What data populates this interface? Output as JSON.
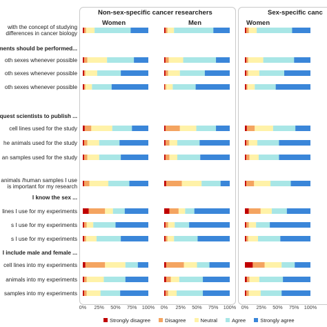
{
  "chart_data": {
    "type": "bar",
    "stacked": "percent",
    "orientation": "horizontal",
    "panels": [
      {
        "title": "Non-sex-specific cancer researchers",
        "groups": [
          "Women",
          "Men"
        ]
      },
      {
        "title": "Sex-specific canc",
        "groups": [
          "Women"
        ]
      }
    ],
    "categories": [
      "Strongly disagree",
      "Disagree",
      "Neutral",
      "Agree",
      "Strongly agree"
    ],
    "colors": [
      "#c00000",
      "#f4a460",
      "#fff2a8",
      "#a8e6e6",
      "#3a86d9"
    ],
    "x_ticks": [
      "0%",
      "25%",
      "50%",
      "75%",
      "100%"
    ],
    "xlim": [
      0,
      100
    ],
    "rows": [
      {
        "label": "with the concept of studying\ndifferences in cancer biology",
        "header": false,
        "values": [
          [
            2,
            3,
            13,
            55,
            27
          ],
          [
            2,
            3,
            10,
            60,
            25
          ],
          [
            2,
            4,
            12,
            54,
            28
          ]
        ]
      },
      {
        "label": "eriments should be performed...",
        "header": true,
        "values": null
      },
      {
        "label": "oth sexes whenever possible",
        "header": false,
        "values": [
          [
            2,
            5,
            30,
            41,
            22
          ],
          [
            2,
            5,
            22,
            50,
            21
          ],
          [
            2,
            3,
            23,
            47,
            25
          ]
        ]
      },
      {
        "label": "oth sexes whenever possible",
        "header": false,
        "values": [
          [
            2,
            2,
            18,
            36,
            42
          ],
          [
            2,
            4,
            18,
            38,
            38
          ],
          [
            2,
            3,
            17,
            38,
            40
          ]
        ]
      },
      {
        "label": "oth sexes whenever possible",
        "header": false,
        "values": [
          [
            2,
            2,
            10,
            30,
            56
          ],
          [
            1,
            2,
            10,
            35,
            52
          ],
          [
            2,
            2,
            11,
            32,
            53
          ]
        ]
      },
      {
        "label": "equest scientists to publish ...",
        "header": true,
        "values": null
      },
      {
        "label": "cell lines used for the study",
        "header": false,
        "values": [
          [
            3,
            10,
            32,
            30,
            25
          ],
          [
            2,
            22,
            25,
            30,
            21
          ],
          [
            3,
            12,
            28,
            34,
            23
          ]
        ]
      },
      {
        "label": "he animals used for the study",
        "header": false,
        "values": [
          [
            2,
            5,
            18,
            31,
            44
          ],
          [
            2,
            6,
            12,
            34,
            46
          ],
          [
            2,
            4,
            13,
            33,
            48
          ]
        ]
      },
      {
        "label": "an samples used for the study",
        "header": false,
        "values": [
          [
            2,
            5,
            18,
            33,
            42
          ],
          [
            2,
            6,
            12,
            35,
            45
          ],
          [
            2,
            5,
            14,
            31,
            48
          ]
        ]
      },
      {
        "label": "animals /human samples I use\nis important for my research",
        "header": false,
        "values": [
          [
            2,
            8,
            29,
            32,
            29
          ],
          [
            3,
            24,
            30,
            29,
            14
          ],
          [
            2,
            12,
            25,
            31,
            30
          ]
        ]
      },
      {
        "label": "I know the sex ...",
        "header": true,
        "values": null
      },
      {
        "label": "lines I use for my experiments",
        "header": false,
        "values": [
          [
            9,
            25,
            12,
            18,
            36
          ],
          [
            8,
            14,
            10,
            14,
            54
          ],
          [
            6,
            18,
            17,
            23,
            36
          ]
        ]
      },
      {
        "label": "s I use for my experiments",
        "header": false,
        "values": [
          [
            2,
            4,
            10,
            34,
            50
          ],
          [
            2,
            4,
            10,
            22,
            62
          ],
          [
            2,
            4,
            11,
            21,
            62
          ]
        ]
      },
      {
        "label": "s I use for my experiments",
        "header": false,
        "values": [
          [
            2,
            3,
            16,
            37,
            42
          ],
          [
            2,
            3,
            10,
            36,
            49
          ],
          [
            2,
            3,
            15,
            34,
            46
          ]
        ]
      },
      {
        "label": "I include male and female ...",
        "header": true,
        "values": null
      },
      {
        "label": "cell lines into my experiments",
        "header": false,
        "values": [
          [
            4,
            30,
            31,
            19,
            16
          ],
          [
            3,
            27,
            20,
            19,
            31
          ],
          [
            12,
            18,
            26,
            20,
            24
          ]
        ]
      },
      {
        "label": "animals into my experiments",
        "header": false,
        "values": [
          [
            2,
            4,
            26,
            33,
            35
          ],
          [
            3,
            7,
            13,
            36,
            41
          ],
          [
            3,
            4,
            15,
            36,
            42
          ]
        ]
      },
      {
        "label": "samples into my experiments",
        "header": false,
        "values": [
          [
            2,
            4,
            21,
            30,
            43
          ],
          [
            2,
            4,
            13,
            40,
            41
          ],
          [
            2,
            4,
            18,
            32,
            44
          ]
        ]
      }
    ]
  }
}
